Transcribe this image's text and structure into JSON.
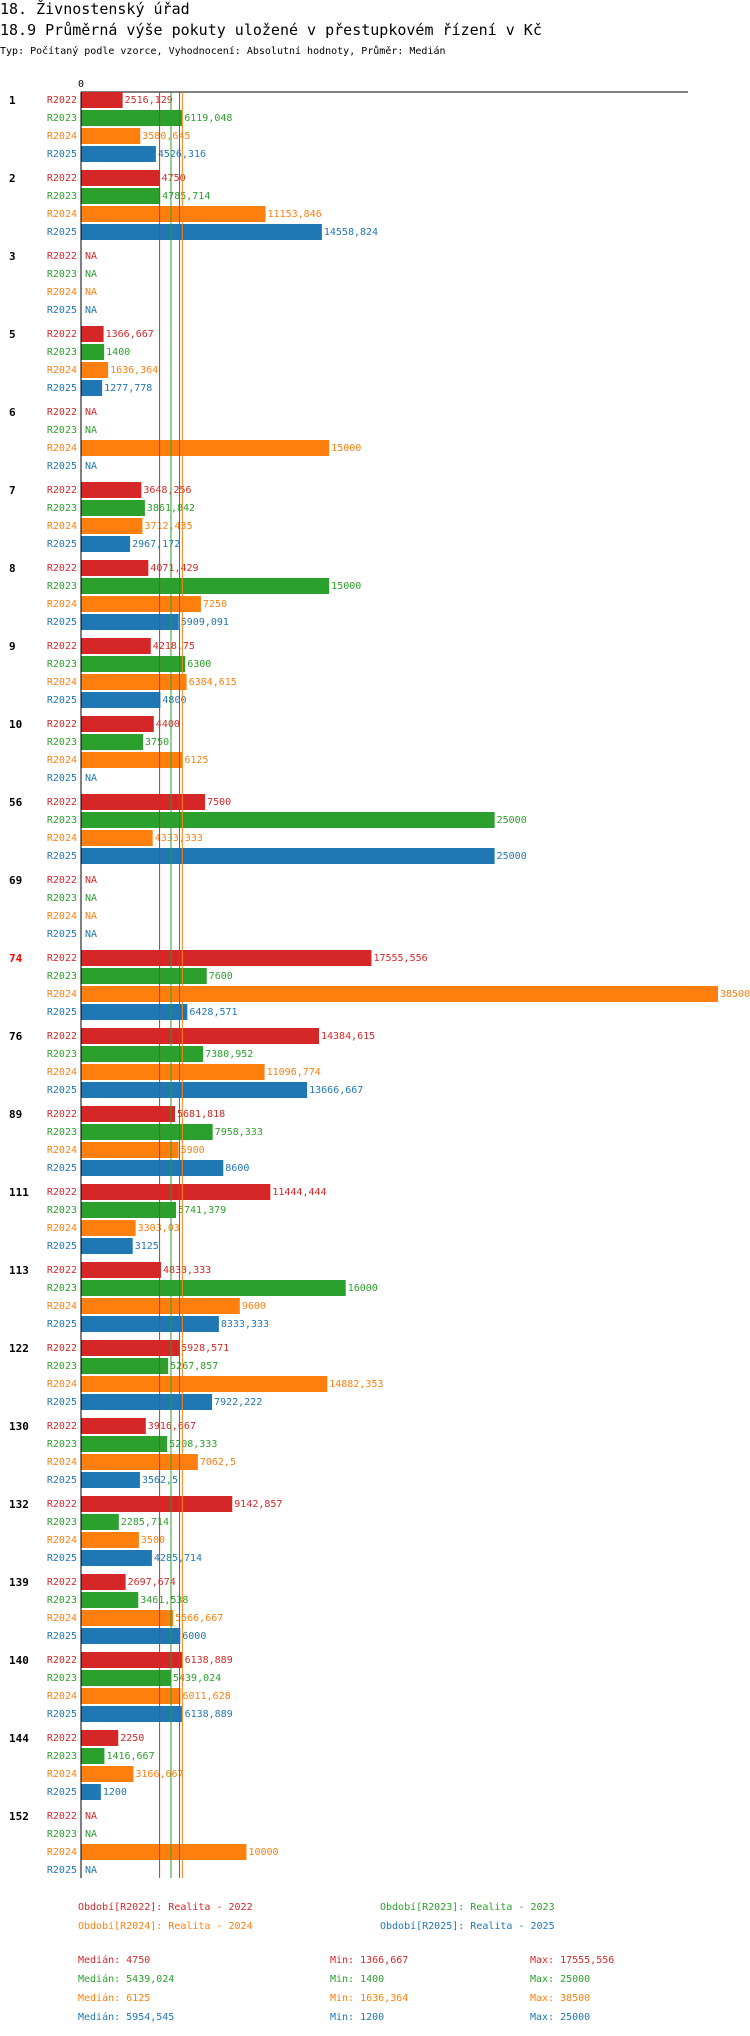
{
  "heading": {
    "section": "18. Živnostenský úřad",
    "title": "18.9 Průměrná výše pokuty uložené v přestupkovém řízení v Kč",
    "subtitle": "Typ: Počítaný podle vzorce, Vyhodnocení: Absolutní hodnoty, Průměr: Medián"
  },
  "colors": {
    "R2022": "#d62728",
    "R2023": "#2ca02c",
    "R2024": "#ff7f0e",
    "R2025": "#1f77b4",
    "highlight": "#ff0000"
  },
  "chart_data": {
    "type": "bar",
    "orientation": "horizontal",
    "axis_zero_label": "0",
    "xlim": [
      0,
      38500
    ],
    "highlight_category": "74",
    "categories": [
      "1",
      "2",
      "3",
      "5",
      "6",
      "7",
      "8",
      "9",
      "10",
      "56",
      "69",
      "74",
      "76",
      "89",
      "111",
      "113",
      "122",
      "130",
      "132",
      "139",
      "140",
      "144",
      "152"
    ],
    "series": [
      {
        "name": "R2022",
        "values": [
          2516.129,
          4750,
          null,
          1366.667,
          null,
          3648.256,
          4071.429,
          4218.75,
          4400,
          7500,
          null,
          17555.556,
          14384.615,
          5681.818,
          11444.444,
          4833.333,
          5928.571,
          3916.667,
          9142.857,
          2697.674,
          6138.889,
          2250,
          null
        ],
        "labels": [
          "2516,129",
          "4750",
          "NA",
          "1366,667",
          "NA",
          "3648,256",
          "4071,429",
          "4218,75",
          "4400",
          "7500",
          "NA",
          "17555,556",
          "14384,615",
          "5681,818",
          "11444,444",
          "4833,333",
          "5928,571",
          "3916,667",
          "9142,857",
          "2697,674",
          "6138,889",
          "2250",
          "NA"
        ]
      },
      {
        "name": "R2023",
        "values": [
          6119.048,
          4785.714,
          null,
          1400,
          null,
          3861.842,
          15000,
          6300,
          3750,
          25000,
          null,
          7600,
          7380.952,
          7958.333,
          5741.379,
          16000,
          5267.857,
          5208.333,
          2285.714,
          3461.538,
          5439.024,
          1416.667,
          null
        ],
        "labels": [
          "6119,048",
          "4785,714",
          "NA",
          "1400",
          "NA",
          "3861,842",
          "15000",
          "6300",
          "3750",
          "25000",
          "NA",
          "7600",
          "7380,952",
          "7958,333",
          "5741,379",
          "16000",
          "5267,857",
          "5208,333",
          "2285,714",
          "3461,538",
          "5439,024",
          "1416,667",
          "NA"
        ]
      },
      {
        "name": "R2024",
        "values": [
          3580.645,
          11153.846,
          null,
          1636.364,
          15000,
          3712.435,
          7250,
          6384.615,
          6125,
          4333.333,
          null,
          38500,
          11096.774,
          5900,
          3303.03,
          9600,
          14882.353,
          7062.5,
          3500,
          5566.667,
          6011.628,
          3166.667,
          10000
        ],
        "labels": [
          "3580,645",
          "11153,846",
          "NA",
          "1636,364",
          "15000",
          "3712,435",
          "7250",
          "6384,615",
          "6125",
          "4333,333",
          "NA",
          "38500",
          "11096,774",
          "5900",
          "3303,03",
          "9600",
          "14882,353",
          "7062,5",
          "3500",
          "5566,667",
          "6011,628",
          "3166,667",
          "10000"
        ]
      },
      {
        "name": "R2025",
        "values": [
          4526.316,
          14558.824,
          null,
          1277.778,
          null,
          2967.172,
          5909.091,
          4800,
          null,
          25000,
          null,
          6428.571,
          13666.667,
          8600,
          3125,
          8333.333,
          7922.222,
          3562.5,
          4285.714,
          6000,
          6138.889,
          1200,
          null
        ],
        "labels": [
          "4526,316",
          "14558,824",
          "NA",
          "1277,778",
          "NA",
          "2967,172",
          "5909,091",
          "4800",
          "NA",
          "25000",
          "NA",
          "6428,571",
          "13666,667",
          "8600",
          "3125",
          "8333,333",
          "7922,222",
          "3562,5",
          "4285,714",
          "6000",
          "6138,889",
          "1200",
          "NA"
        ]
      }
    ],
    "medians": {
      "R2022": 4750,
      "R2023": 5439.024,
      "R2024": 6125,
      "R2025": 5954.545
    },
    "legend": [
      {
        "series": "R2022",
        "label": "Období[R2022]: Realita - 2022"
      },
      {
        "series": "R2023",
        "label": "Období[R2023]: Realita - 2023"
      },
      {
        "series": "R2024",
        "label": "Období[R2024]: Realita - 2024"
      },
      {
        "series": "R2025",
        "label": "Období[R2025]: Realita - 2025"
      }
    ],
    "stats": [
      {
        "series": "R2022",
        "median": "Medián: 4750",
        "min": "Min: 1366,667",
        "max": "Max: 17555,556"
      },
      {
        "series": "R2023",
        "median": "Medián: 5439,024",
        "min": "Min: 1400",
        "max": "Max: 25000"
      },
      {
        "series": "R2024",
        "median": "Medián: 6125",
        "min": "Min: 1636,364",
        "max": "Max: 38500"
      },
      {
        "series": "R2025",
        "median": "Medián: 5954,545",
        "min": "Min: 1200",
        "max": "Max: 25000"
      }
    ]
  }
}
